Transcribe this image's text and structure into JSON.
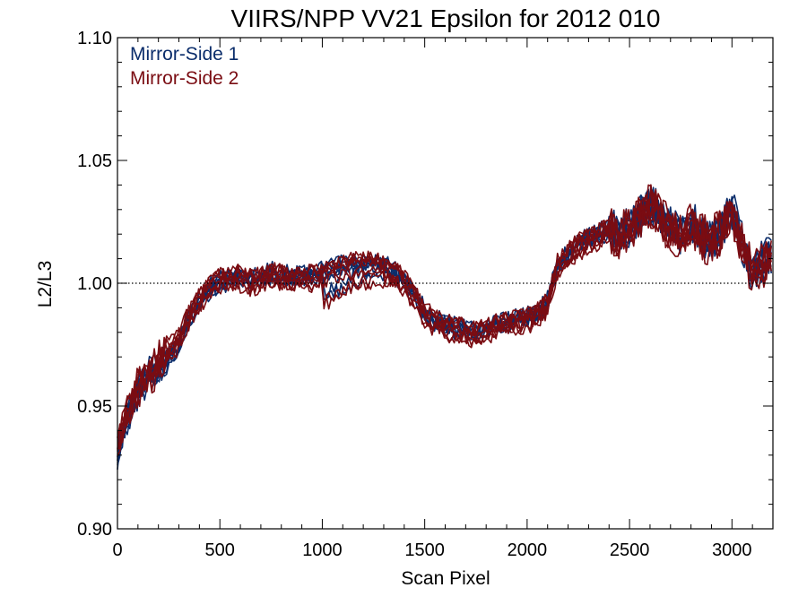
{
  "chart_data": {
    "type": "line",
    "title": "VIIRS/NPP VV21 Epsilon for 2012 010",
    "xlabel": "Scan Pixel",
    "ylabel": "L2/L3",
    "xlim": [
      0,
      3200
    ],
    "ylim": [
      0.9,
      1.1
    ],
    "xticks": [
      0,
      500,
      1000,
      1500,
      2000,
      2500,
      3000
    ],
    "xtick_labels": [
      "0",
      "500",
      "1000",
      "1500",
      "2000",
      "2500",
      "3000"
    ],
    "yticks": [
      0.9,
      0.95,
      1.0,
      1.05,
      1.1
    ],
    "ytick_labels": [
      "0.90",
      "0.95",
      "1.00",
      "1.05",
      "1.10"
    ],
    "grid": false,
    "legend": "top-left",
    "reference_line": {
      "y": 1.0,
      "style": "dotted"
    },
    "x": [
      0,
      50,
      100,
      150,
      200,
      250,
      300,
      350,
      400,
      450,
      500,
      550,
      600,
      650,
      700,
      750,
      800,
      850,
      900,
      950,
      1000,
      1050,
      1100,
      1150,
      1200,
      1250,
      1300,
      1350,
      1400,
      1450,
      1500,
      1550,
      1600,
      1650,
      1700,
      1750,
      1800,
      1850,
      1900,
      1950,
      2000,
      2050,
      2100,
      2150,
      2200,
      2250,
      2300,
      2350,
      2400,
      2450,
      2500,
      2550,
      2600,
      2650,
      2700,
      2750,
      2800,
      2850,
      2900,
      2950,
      3000,
      3050,
      3100,
      3150,
      3200
    ],
    "series": [
      {
        "name": "Mirror-Side 1",
        "color": "#0b2d6b",
        "values": [
          0.93,
          0.945,
          0.955,
          0.962,
          0.965,
          0.97,
          0.975,
          0.985,
          0.992,
          0.998,
          1.0,
          1.002,
          1.003,
          1.001,
          1.002,
          1.004,
          1.003,
          1.002,
          1.003,
          1.003,
          1.004,
          1.006,
          1.007,
          1.008,
          1.008,
          1.008,
          1.007,
          1.005,
          1.001,
          0.995,
          0.988,
          0.985,
          0.983,
          0.982,
          0.981,
          0.98,
          0.981,
          0.983,
          0.984,
          0.985,
          0.986,
          0.988,
          0.992,
          1.008,
          1.012,
          1.016,
          1.018,
          1.02,
          1.022,
          1.02,
          1.023,
          1.027,
          1.032,
          1.028,
          1.022,
          1.02,
          1.024,
          1.02,
          1.018,
          1.022,
          1.03,
          1.015,
          1.005,
          1.008,
          1.012
        ]
      },
      {
        "name": "Mirror-Side 2",
        "color": "#7a0c12",
        "values": [
          0.935,
          0.948,
          0.958,
          0.96,
          0.968,
          0.972,
          0.977,
          0.986,
          0.993,
          0.999,
          1.001,
          1.002,
          1.002,
          1.0,
          1.001,
          1.003,
          1.002,
          1.001,
          1.002,
          1.002,
          1.003,
          1.005,
          1.006,
          1.007,
          1.007,
          1.007,
          1.006,
          1.004,
          1.0,
          0.994,
          0.987,
          0.984,
          0.982,
          0.981,
          0.98,
          0.979,
          0.98,
          0.982,
          0.983,
          0.984,
          0.985,
          0.987,
          0.991,
          1.007,
          1.011,
          1.015,
          1.017,
          1.019,
          1.021,
          1.019,
          1.022,
          1.026,
          1.031,
          1.027,
          1.021,
          1.019,
          1.023,
          1.019,
          1.017,
          1.021,
          1.029,
          1.014,
          1.004,
          1.007,
          1.011
        ]
      }
    ]
  }
}
